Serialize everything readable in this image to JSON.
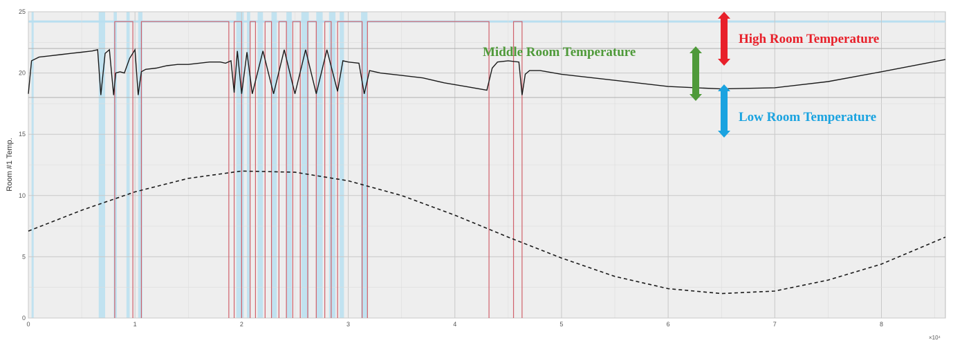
{
  "chart_data": {
    "type": "line",
    "ylabel": "Room #1 Temp.",
    "x_multiplier": "×10⁴",
    "xlim": [
      0,
      8.6
    ],
    "ylim": [
      0,
      25
    ],
    "x_ticks": [
      0,
      1,
      2,
      3,
      4,
      5,
      6,
      7,
      8
    ],
    "y_ticks": [
      0,
      5,
      10,
      15,
      20,
      25
    ],
    "grid": true,
    "thresholds": {
      "high": 22,
      "low": 18
    },
    "annotations": [
      {
        "text": "High Room Temperature",
        "color": "#e8202a",
        "arrow_from": 22,
        "arrow_to": 25
      },
      {
        "text": "Middle Room Temperature",
        "color": "#4f9a3a",
        "arrow_from": 18,
        "arrow_to": 22
      },
      {
        "text": "Low Room Temperature",
        "color": "#1aa3e0",
        "arrow_from": 15,
        "arrow_to": 18
      }
    ],
    "series": [
      {
        "style": "solid",
        "color": "#1a1a1a",
        "x": [
          0.0,
          0.03,
          0.1,
          0.2,
          0.3,
          0.4,
          0.5,
          0.6,
          0.65,
          0.68,
          0.72,
          0.76,
          0.8,
          0.82,
          0.86,
          0.9,
          0.95,
          1.0,
          1.03,
          1.06,
          1.1,
          1.2,
          1.3,
          1.4,
          1.5,
          1.6,
          1.7,
          1.8,
          1.85,
          1.9,
          1.93,
          1.96,
          2.0,
          2.05,
          2.1,
          2.2,
          2.3,
          2.4,
          2.5,
          2.6,
          2.7,
          2.8,
          2.9,
          2.95,
          3.0,
          3.1,
          3.15,
          3.2,
          3.25,
          3.3,
          3.5,
          3.7,
          3.9,
          4.1,
          4.3,
          4.35,
          4.4,
          4.5,
          4.6,
          4.63,
          4.66,
          4.7,
          4.8,
          5.0,
          5.5,
          6.0,
          6.5,
          7.0,
          7.5,
          8.0,
          8.6
        ],
        "y": [
          18.3,
          21.0,
          21.3,
          21.4,
          21.5,
          21.6,
          21.7,
          21.8,
          21.9,
          18.2,
          21.6,
          21.9,
          18.2,
          20.0,
          20.1,
          20.0,
          21.2,
          21.9,
          18.2,
          20.1,
          20.3,
          20.4,
          20.6,
          20.7,
          20.7,
          20.8,
          20.9,
          20.9,
          20.8,
          21.0,
          18.4,
          21.8,
          18.3,
          21.7,
          18.3,
          21.8,
          18.3,
          21.9,
          18.3,
          21.9,
          18.3,
          21.9,
          18.5,
          21.0,
          20.9,
          20.8,
          18.3,
          20.2,
          20.1,
          20.0,
          19.8,
          19.6,
          19.2,
          18.9,
          18.6,
          20.4,
          20.9,
          21.0,
          20.9,
          18.2,
          19.9,
          20.2,
          20.2,
          19.9,
          19.4,
          18.9,
          18.7,
          18.8,
          19.3,
          20.1,
          21.1
        ]
      },
      {
        "style": "dashed",
        "color": "#1a1a1a",
        "x": [
          0.0,
          0.5,
          1.0,
          1.5,
          2.0,
          2.5,
          3.0,
          3.5,
          4.0,
          4.5,
          5.0,
          5.5,
          6.0,
          6.5,
          7.0,
          7.5,
          8.0,
          8.6
        ],
        "y": [
          7.1,
          8.8,
          10.3,
          11.4,
          12.0,
          11.9,
          11.2,
          10.0,
          8.4,
          6.6,
          4.9,
          3.4,
          2.4,
          2.0,
          2.2,
          3.1,
          4.4,
          6.6
        ]
      }
    ],
    "blue_bands": [
      [
        0.03,
        0.05
      ],
      [
        0.66,
        0.72
      ],
      [
        0.8,
        0.83
      ],
      [
        0.92,
        0.95
      ],
      [
        1.03,
        1.07
      ],
      [
        1.95,
        2.02
      ],
      [
        2.05,
        2.08
      ],
      [
        2.15,
        2.2
      ],
      [
        2.28,
        2.33
      ],
      [
        2.42,
        2.47
      ],
      [
        2.56,
        2.63
      ],
      [
        2.7,
        2.76
      ],
      [
        2.82,
        2.88
      ],
      [
        2.92,
        2.96
      ],
      [
        3.12,
        3.18
      ]
    ],
    "red_intervals": [
      [
        0.81,
        0.98
      ],
      [
        1.06,
        1.88
      ],
      [
        1.93,
        2.0
      ],
      [
        2.08,
        2.13
      ],
      [
        2.22,
        2.28
      ],
      [
        2.35,
        2.42
      ],
      [
        2.48,
        2.55
      ],
      [
        2.62,
        2.7
      ],
      [
        2.78,
        2.84
      ],
      [
        2.9,
        3.13
      ],
      [
        3.18,
        4.32
      ],
      [
        4.55,
        4.63
      ]
    ]
  }
}
